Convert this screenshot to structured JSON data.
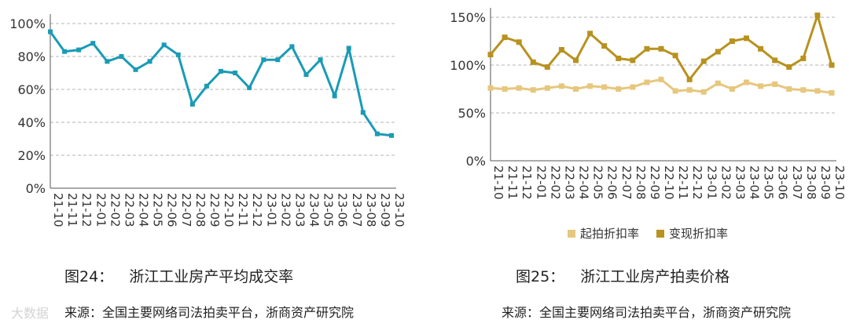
{
  "figures": [
    {
      "caption_num": "图24：",
      "caption_title": "浙江工业房产平均成交率",
      "source": "来源：全国主要网络司法拍卖平台，浙商资产研究院"
    },
    {
      "caption_num": "图25：",
      "caption_title": "浙江工业房产拍卖价格",
      "source": "来源：全国主要网络司法拍卖平台，浙商资产研究院"
    }
  ],
  "watermark": "大数据",
  "chart_data": [
    {
      "type": "line",
      "categories": [
        "21-10",
        "21-11",
        "21-12",
        "22-01",
        "22-02",
        "22-03",
        "22-04",
        "22-05",
        "22-06",
        "22-07",
        "22-08",
        "22-09",
        "22-10",
        "22-11",
        "22-12",
        "23-01",
        "23-02",
        "23-03",
        "23-04",
        "23-05",
        "23-06",
        "23-07",
        "23-08",
        "23-09",
        "23-10"
      ],
      "series": [
        {
          "name": "",
          "values": [
            95,
            83,
            84,
            88,
            77,
            80,
            72,
            77,
            87,
            81,
            51,
            62,
            71,
            70,
            61,
            78,
            78,
            86,
            69,
            78,
            56,
            85,
            46,
            33,
            32
          ],
          "color": "#1a9bb5"
        }
      ],
      "ylim": [
        0,
        100
      ],
      "yticks": [
        0,
        20,
        40,
        60,
        80,
        100
      ],
      "ytick_suffix": "%",
      "grid": true
    },
    {
      "type": "line",
      "categories": [
        "21-10",
        "21-11",
        "21-12",
        "22-01",
        "22-02",
        "22-03",
        "22-04",
        "22-05",
        "22-06",
        "22-07",
        "22-08",
        "22-09",
        "22-10",
        "22-11",
        "22-12",
        "23-01",
        "23-02",
        "23-03",
        "23-04",
        "23-05",
        "23-06",
        "23-07",
        "23-08",
        "23-09",
        "23-10"
      ],
      "series": [
        {
          "name": "起拍折扣率",
          "values": [
            76,
            75,
            76,
            74,
            76,
            78,
            75,
            78,
            77,
            75,
            77,
            82,
            85,
            73,
            74,
            72,
            81,
            75,
            82,
            78,
            80,
            75,
            74,
            73,
            71
          ],
          "color": "#e6c77e"
        },
        {
          "name": "变现折扣率",
          "values": [
            111,
            129,
            124,
            103,
            98,
            116,
            105,
            133,
            120,
            107,
            105,
            117,
            117,
            110,
            85,
            104,
            114,
            125,
            128,
            117,
            105,
            98,
            107,
            152,
            100
          ],
          "color": "#b8921f"
        }
      ],
      "ylim": [
        0,
        150
      ],
      "yticks": [
        0,
        50,
        100,
        150
      ],
      "ytick_suffix": "%",
      "grid": true,
      "legend_position": "bottom"
    }
  ]
}
